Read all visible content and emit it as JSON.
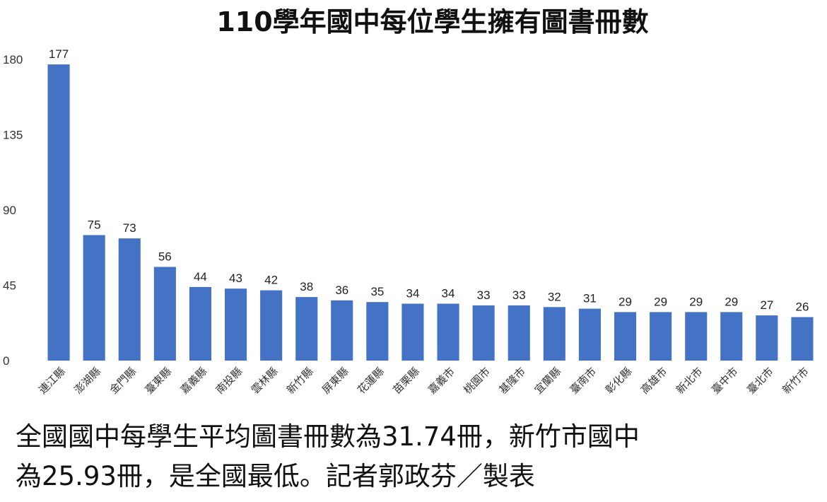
{
  "chart_data": {
    "type": "bar",
    "title": "110學年國中每位學生擁有圖書冊數",
    "xlabel": "",
    "ylabel": "",
    "ylim": [
      0,
      180
    ],
    "yticks": [
      0,
      45,
      90,
      135,
      180
    ],
    "grid": false,
    "legend": "none",
    "bar_color": "#4472C4",
    "categories": [
      "連江縣",
      "澎湖縣",
      "金門縣",
      "臺東縣",
      "嘉義縣",
      "南投縣",
      "雲林縣",
      "新竹縣",
      "屏東縣",
      "花蓮縣",
      "苗栗縣",
      "嘉義市",
      "桃園市",
      "基隆市",
      "宜蘭縣",
      "臺南市",
      "彰化縣",
      "高雄市",
      "新北市",
      "臺中市",
      "臺北市",
      "新竹市"
    ],
    "values": [
      177,
      75,
      73,
      56,
      44,
      43,
      42,
      38,
      36,
      35,
      34,
      34,
      33,
      33,
      32,
      31,
      29,
      29,
      29,
      29,
      27,
      26
    ],
    "data_labels": [
      "177",
      "75",
      "73",
      "56",
      "44",
      "43",
      "42",
      "38",
      "36",
      "35",
      "34",
      "34",
      "33",
      "33",
      "32",
      "31",
      "29",
      "29",
      "29",
      "29",
      "27",
      "26"
    ],
    "ytick_labels": [
      "0",
      "45",
      "90",
      "135",
      "180"
    ]
  },
  "caption": {
    "line1": "全國國中每學生平均圖書冊數為31.74冊，新竹市國中",
    "line2": "為25.93冊，是全國最低。記者郭政芬／製表"
  }
}
